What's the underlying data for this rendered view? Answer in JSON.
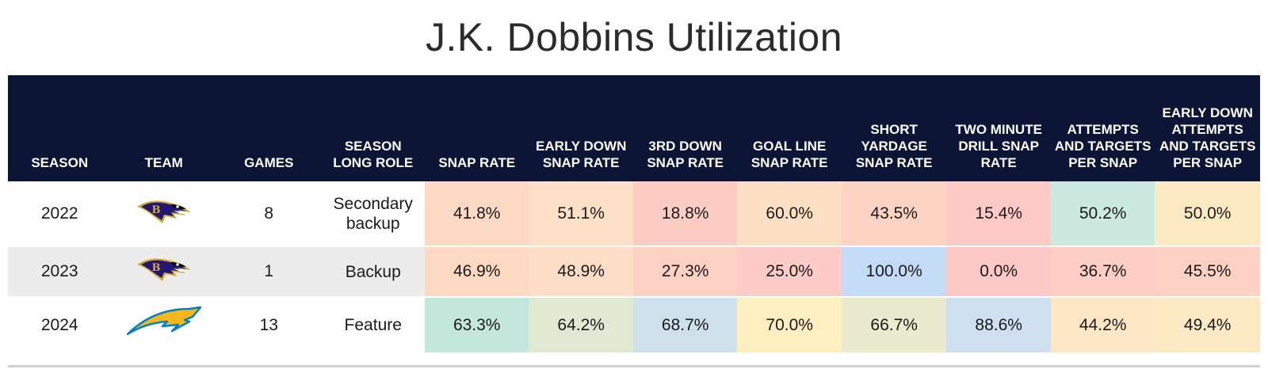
{
  "title": "J.K. Dobbins Utilization",
  "columns": [
    "SEASON",
    "TEAM",
    "GAMES",
    "SEASON LONG ROLE",
    "SNAP RATE",
    "EARLY DOWN SNAP RATE",
    "3RD DOWN SNAP RATE",
    "GOAL LINE SNAP RATE",
    "SHORT YARDAGE SNAP RATE",
    "TWO MINUTE DRILL SNAP RATE",
    "ATTEMPTS AND TARGETS PER SNAP",
    "EARLY DOWN ATTEMPTS AND TARGETS PER SNAP"
  ],
  "rows": [
    {
      "season": "2022",
      "team_icon": "ravens-logo-icon",
      "games": "8",
      "role": "Secondary backup",
      "values": [
        "41.8%",
        "51.1%",
        "18.8%",
        "60.0%",
        "43.5%",
        "15.4%",
        "50.2%",
        "50.0%"
      ],
      "colors": [
        "#fdd9c4",
        "#fde0c5",
        "#fdcdc3",
        "#fddfc4",
        "#fdd4c4",
        "#fecac6",
        "#cce9e0",
        "#fdeac2"
      ]
    },
    {
      "season": "2023",
      "team_icon": "ravens-logo-icon",
      "games": "1",
      "role": "Backup",
      "values": [
        "46.9%",
        "48.9%",
        "27.3%",
        "25.0%",
        "100.0%",
        "0.0%",
        "36.7%",
        "45.5%"
      ],
      "colors": [
        "#fdd9c2",
        "#fdddc5",
        "#fdd0c4",
        "#fecbc7",
        "#c3dbf7",
        "#fec8c6",
        "#fdcfc4",
        "#fdd0c4"
      ]
    },
    {
      "season": "2024",
      "team_icon": "chargers-logo-icon",
      "games": "13",
      "role": "Feature",
      "values": [
        "63.3%",
        "64.2%",
        "68.7%",
        "70.0%",
        "66.7%",
        "88.6%",
        "44.2%",
        "49.4%"
      ],
      "colors": [
        "#c3e8db",
        "#e2e9d3",
        "#cde0eb",
        "#fdefc0",
        "#eaeacf",
        "#cedff0",
        "#fde6c4",
        "#fde9c3"
      ]
    }
  ]
}
